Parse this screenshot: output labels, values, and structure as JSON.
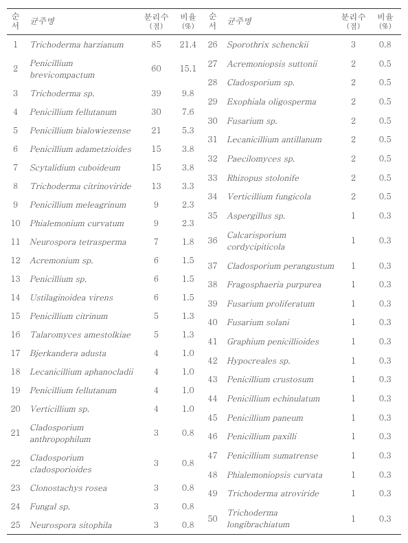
{
  "headers": {
    "num": "순서",
    "name": "균주명",
    "count_main": "분리수",
    "count_sub": "(점)",
    "ratio_main": "비율",
    "ratio_sub": "(%)"
  },
  "left": [
    {
      "n": "1",
      "name": "Trichoderma harzianum",
      "c": "85",
      "r": "21.4"
    },
    {
      "n": "2",
      "name": "Penicillium brevicompactum",
      "c": "60",
      "r": "15.1"
    },
    {
      "n": "3",
      "name": "Trichoderma sp.",
      "c": "39",
      "r": "9.8"
    },
    {
      "n": "4",
      "name": "Penicillium fellutanum",
      "c": "30",
      "r": "7.6"
    },
    {
      "n": "5",
      "name": "Penicillium bialowiezense",
      "c": "21",
      "r": "5.3"
    },
    {
      "n": "6",
      "name": "Penicillium adametzioides",
      "c": "15",
      "r": "3.8"
    },
    {
      "n": "7",
      "name": "Scytalidium cuboideum",
      "c": "15",
      "r": "3.8"
    },
    {
      "n": "8",
      "name": "Trichoderma citrinoviride",
      "c": "13",
      "r": "3.3"
    },
    {
      "n": "9",
      "name": "Penicillium meleagrinum",
      "c": "9",
      "r": "2.3"
    },
    {
      "n": "10",
      "name": "Phialemonium curvatum",
      "c": "9",
      "r": "2.3"
    },
    {
      "n": "11",
      "name": "Neurospora tetrasperma",
      "c": "7",
      "r": "1.8"
    },
    {
      "n": "12",
      "name": "Acremonium sp.",
      "c": "6",
      "r": "1.5"
    },
    {
      "n": "13",
      "name": "Penicillium sp.",
      "c": "6",
      "r": "1.5"
    },
    {
      "n": "14",
      "name": "Ustilaginoidea virens",
      "c": "6",
      "r": "1.5"
    },
    {
      "n": "15",
      "name": "Penicillium citrinum",
      "c": "5",
      "r": "1.3"
    },
    {
      "n": "16",
      "name": "Talaromyces amestolkiae",
      "c": "5",
      "r": "1.3"
    },
    {
      "n": "17",
      "name": "Bjerkandera adusta",
      "c": "4",
      "r": "1.0"
    },
    {
      "n": "18",
      "name": "Lecanicillium aphanocladii",
      "c": "4",
      "r": "1.0"
    },
    {
      "n": "19",
      "name": "Penicillium fellutanum",
      "c": "4",
      "r": "1.0"
    },
    {
      "n": "20",
      "name": "Verticillium sp.",
      "c": "4",
      "r": "1.0"
    },
    {
      "n": "21",
      "name": "Cladosporium anthropophilum",
      "c": "3",
      "r": "0.8"
    },
    {
      "n": "22",
      "name": "Cladosporium cladosporioides",
      "c": "3",
      "r": "0.8"
    },
    {
      "n": "23",
      "name": "Clonostachys rosea",
      "c": "3",
      "r": "0.8"
    },
    {
      "n": "24",
      "name": "Fungal sp.",
      "c": "3",
      "r": "0.8"
    },
    {
      "n": "25",
      "name": "Neurospora sitophila",
      "c": "3",
      "r": "0.8"
    }
  ],
  "right": [
    {
      "n": "26",
      "name": "Sporothrix schenckii",
      "c": "3",
      "r": "0.8"
    },
    {
      "n": "27",
      "name": "Acremoniopsis suttonii",
      "c": "2",
      "r": "0.5"
    },
    {
      "n": "28",
      "name": "Cladosporium sp.",
      "c": "2",
      "r": "0.5"
    },
    {
      "n": "29",
      "name": "Exophiala oligosperma",
      "c": "2",
      "r": "0.5"
    },
    {
      "n": "30",
      "name": "Fusarium sp.",
      "c": "2",
      "r": "0.5"
    },
    {
      "n": "31",
      "name": "Lecanicillium antillanum",
      "c": "2",
      "r": "0.5"
    },
    {
      "n": "32",
      "name": "Paecilomyces sp.",
      "c": "2",
      "r": "0.5"
    },
    {
      "n": "33",
      "name": "Rhizopus stolonife",
      "c": "2",
      "r": "0.5"
    },
    {
      "n": "34",
      "name": "Verticillium fungicola",
      "c": "2",
      "r": "0.5"
    },
    {
      "n": "35",
      "name": "Aspergillus sp.",
      "c": "1",
      "r": "0.3"
    },
    {
      "n": "36",
      "name": "Calcarisporium cordycipiticola",
      "c": "1",
      "r": "0.3"
    },
    {
      "n": "37",
      "name": "Cladosporium perangustum",
      "c": "1",
      "r": "0.3"
    },
    {
      "n": "38",
      "name": "Fragosphaeria purpurea",
      "c": "1",
      "r": "0.3"
    },
    {
      "n": "39",
      "name": "Fusarium proliferatum",
      "c": "1",
      "r": "0.3"
    },
    {
      "n": "40",
      "name": "Fusarium solani",
      "c": "1",
      "r": "0.3"
    },
    {
      "n": "41",
      "name": "Graphium penicillioides",
      "c": "1",
      "r": "0.3"
    },
    {
      "n": "42",
      "name": "Hypocreales sp.",
      "c": "1",
      "r": "0.3"
    },
    {
      "n": "43",
      "name": "Penicillium crustosum",
      "c": "1",
      "r": "0.3"
    },
    {
      "n": "44",
      "name": "Penicillium echinulatum",
      "c": "1",
      "r": "0.3"
    },
    {
      "n": "45",
      "name": "Penicillium paneum",
      "c": "1",
      "r": "0.3"
    },
    {
      "n": "46",
      "name": "Penicillium paxilli",
      "c": "1",
      "r": "0.3"
    },
    {
      "n": "47",
      "name": "Penicillium sumatrense",
      "c": "1",
      "r": "0.3"
    },
    {
      "n": "48",
      "name": "Phialemoniopsis curvata",
      "c": "1",
      "r": "0.3"
    },
    {
      "n": "49",
      "name": "Trichoderma atroviride",
      "c": "1",
      "r": "0.3"
    },
    {
      "n": "50",
      "name": "Trichoderma longibrachiatum",
      "c": "1",
      "r": "0.3"
    }
  ],
  "style": {
    "background": "#ffffff",
    "text_color": "#333333",
    "border_color": "#333333",
    "font_size_body": 12,
    "font_size_sub": 11,
    "italic_species": true
  }
}
